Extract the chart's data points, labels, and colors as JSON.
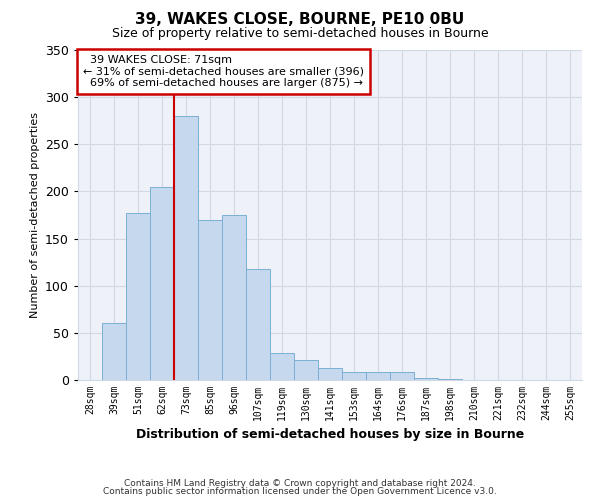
{
  "title": "39, WAKES CLOSE, BOURNE, PE10 0BU",
  "subtitle": "Size of property relative to semi-detached houses in Bourne",
  "xlabel": "Distribution of semi-detached houses by size in Bourne",
  "ylabel": "Number of semi-detached properties",
  "footer_line1": "Contains HM Land Registry data © Crown copyright and database right 2024.",
  "footer_line2": "Contains public sector information licensed under the Open Government Licence v3.0.",
  "bar_labels": [
    "28sqm",
    "39sqm",
    "51sqm",
    "62sqm",
    "73sqm",
    "85sqm",
    "96sqm",
    "107sqm",
    "119sqm",
    "130sqm",
    "141sqm",
    "153sqm",
    "164sqm",
    "176sqm",
    "187sqm",
    "198sqm",
    "210sqm",
    "221sqm",
    "232sqm",
    "244sqm",
    "255sqm"
  ],
  "bar_values": [
    0,
    60,
    177,
    205,
    280,
    170,
    175,
    118,
    29,
    21,
    13,
    9,
    8,
    8,
    2,
    1,
    0,
    0,
    0,
    0,
    0
  ],
  "bar_color": "#c5d8ed",
  "bar_edge_color": "#7aafd4",
  "ylim": [
    0,
    350
  ],
  "yticks": [
    0,
    50,
    100,
    150,
    200,
    250,
    300,
    350
  ],
  "vline_index": 4,
  "property_label": "39 WAKES CLOSE: 71sqm",
  "pct_smaller": 31,
  "pct_larger": 69,
  "n_smaller": 396,
  "n_larger": 875,
  "annotation_box_color": "#ffffff",
  "annotation_box_edgecolor": "#cc0000",
  "vline_color": "#cc0000",
  "grid_color": "#d0d8e4",
  "bg_color": "#ffffff",
  "plot_bg_color": "#eef2f8"
}
